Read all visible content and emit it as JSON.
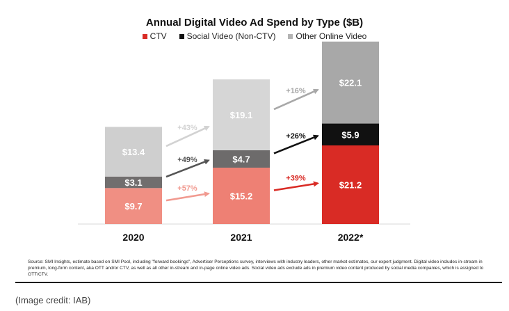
{
  "chart_data": {
    "type": "bar",
    "stacked": true,
    "title": "Annual Digital Video Ad Spend by Type ($B)",
    "legend_position": "top",
    "categories": [
      "2020",
      "2021",
      "2022*"
    ],
    "series": [
      {
        "name": "CTV",
        "values": [
          9.7,
          15.2,
          21.2
        ],
        "labels": [
          "$9.7",
          "$15.2",
          "$21.2"
        ]
      },
      {
        "name": "Social Video (Non-CTV)",
        "values": [
          3.1,
          4.7,
          5.9
        ],
        "labels": [
          "$3.1",
          "$4.7",
          "$5.9"
        ]
      },
      {
        "name": "Other Online Video",
        "values": [
          13.4,
          19.1,
          22.1
        ],
        "labels": [
          "$13.4",
          "$19.1",
          "$22.1"
        ]
      }
    ],
    "growth_annotations": [
      {
        "from": "2020",
        "to": "2021",
        "series": "Other Online Video",
        "label": "+43%"
      },
      {
        "from": "2020",
        "to": "2021",
        "series": "Social Video (Non-CTV)",
        "label": "+49%"
      },
      {
        "from": "2020",
        "to": "2021",
        "series": "CTV",
        "label": "+57%"
      },
      {
        "from": "2021",
        "to": "2022*",
        "series": "Other Online Video",
        "label": "+16%"
      },
      {
        "from": "2021",
        "to": "2022*",
        "series": "Social Video (Non-CTV)",
        "label": "+26%"
      },
      {
        "from": "2021",
        "to": "2022*",
        "series": "CTV",
        "label": "+39%"
      }
    ],
    "grid": false
  },
  "legend_labels": [
    "CTV",
    "Social Video (Non-CTV)",
    "Other Online Video"
  ],
  "source_note": "Source: SMI Insights, estimate based on SMI Pool, including \"forward bookings\", Advertiser Perceptions survey, interviews with industry leaders, other market estimates, our expert judgment. Digital video includes in-stream in premium, long-form content, aka OTT and/or CTV, as well as all other in-stream and in-page online video ads. Social video ads exclude ads in premium video content produced by social media companies, which is assigned to OTT/CTV.",
  "credit": "(Image credit: IAB)",
  "colors": {
    "bars": [
      [
        "#f08f83",
        "#716e6e",
        "#cfcfcf"
      ],
      [
        "#ee8074",
        "#6d6b6b",
        "#d6d6d6"
      ],
      [
        "#d92b25",
        "#111111",
        "#a8a8a8"
      ]
    ],
    "legend": [
      "#d92b25",
      "#111111",
      "#b3b3b3"
    ],
    "arrows_2020_2021": [
      "#f19a90",
      "#555555",
      "#d2d2d2"
    ],
    "arrows_2021_2022": [
      "#d92b25",
      "#111111",
      "#a8a8a8"
    ],
    "label_bright": "#ffffff"
  }
}
